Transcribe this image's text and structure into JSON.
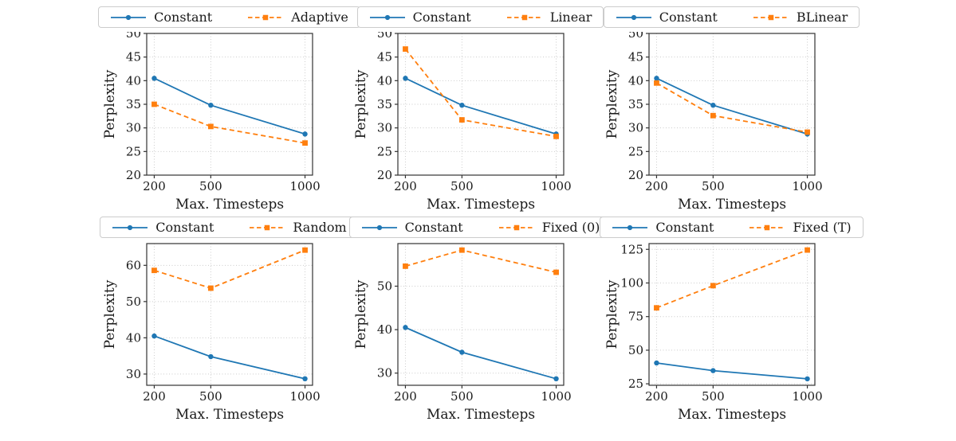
{
  "figure": {
    "xlabel": "Max. Timesteps",
    "ylabel": "Perplexity",
    "background_color": "#ffffff",
    "grid_color": "#cccccc",
    "axis_border_color": "#333333",
    "text_color": "#1a1a1a",
    "constant_color": "#1f77b4",
    "comparison_color": "#ff7f0e"
  },
  "chart_data": [
    {
      "type": "line",
      "x": [
        200,
        500,
        1000
      ],
      "xticks": [
        200,
        500,
        1000
      ],
      "xlim": [
        160,
        1040
      ],
      "ylim": [
        20,
        50
      ],
      "yticks": [
        20,
        25,
        30,
        35,
        40,
        45,
        50
      ],
      "xlabel": "Max. Timesteps",
      "ylabel": "Perplexity",
      "grid": true,
      "legend_position": "top",
      "series": [
        {
          "name": "Constant",
          "values": [
            40.5,
            34.8,
            28.7
          ],
          "color": "#1f77b4",
          "line_style": "solid",
          "marker": "circle"
        },
        {
          "name": "Adaptive",
          "values": [
            35.0,
            30.3,
            26.8
          ],
          "color": "#ff7f0e",
          "line_style": "dashed",
          "marker": "square"
        }
      ]
    },
    {
      "type": "line",
      "x": [
        200,
        500,
        1000
      ],
      "xticks": [
        200,
        500,
        1000
      ],
      "xlim": [
        160,
        1040
      ],
      "ylim": [
        20,
        50
      ],
      "yticks": [
        20,
        25,
        30,
        35,
        40,
        45,
        50
      ],
      "xlabel": "Max. Timesteps",
      "ylabel": "Perplexity",
      "grid": true,
      "legend_position": "top",
      "series": [
        {
          "name": "Constant",
          "values": [
            40.5,
            34.8,
            28.7
          ],
          "color": "#1f77b4",
          "line_style": "solid",
          "marker": "circle"
        },
        {
          "name": "Linear",
          "values": [
            46.7,
            31.7,
            28.2
          ],
          "color": "#ff7f0e",
          "line_style": "dashed",
          "marker": "square"
        }
      ]
    },
    {
      "type": "line",
      "x": [
        200,
        500,
        1000
      ],
      "xticks": [
        200,
        500,
        1000
      ],
      "xlim": [
        160,
        1040
      ],
      "ylim": [
        20,
        50
      ],
      "yticks": [
        20,
        25,
        30,
        35,
        40,
        45,
        50
      ],
      "xlabel": "Max. Timesteps",
      "ylabel": "Perplexity",
      "grid": true,
      "legend_position": "top",
      "series": [
        {
          "name": "Constant",
          "values": [
            40.5,
            34.8,
            28.7
          ],
          "color": "#1f77b4",
          "line_style": "solid",
          "marker": "circle"
        },
        {
          "name": "BLinear",
          "values": [
            39.5,
            32.6,
            29.1
          ],
          "color": "#ff7f0e",
          "line_style": "dashed",
          "marker": "square"
        }
      ]
    },
    {
      "type": "line",
      "x": [
        200,
        500,
        1000
      ],
      "xticks": [
        200,
        500,
        1000
      ],
      "xlim": [
        160,
        1040
      ],
      "ylim": [
        26.9,
        66.0
      ],
      "yticks": [
        30,
        40,
        50,
        60
      ],
      "xlabel": "Max. Timesteps",
      "ylabel": "Perplexity",
      "grid": true,
      "legend_position": "top",
      "series": [
        {
          "name": "Constant",
          "values": [
            40.5,
            34.8,
            28.7
          ],
          "color": "#1f77b4",
          "line_style": "solid",
          "marker": "circle"
        },
        {
          "name": "Random",
          "values": [
            58.6,
            53.7,
            64.2
          ],
          "color": "#ff7f0e",
          "line_style": "dashed",
          "marker": "square"
        }
      ]
    },
    {
      "type": "line",
      "x": [
        200,
        500,
        1000
      ],
      "xticks": [
        200,
        500,
        1000
      ],
      "xlim": [
        160,
        1040
      ],
      "ylim": [
        27.2,
        59.8
      ],
      "yticks": [
        30,
        40,
        50
      ],
      "xlabel": "Max. Timesteps",
      "ylabel": "Perplexity",
      "grid": true,
      "legend_position": "top",
      "series": [
        {
          "name": "Constant",
          "values": [
            40.5,
            34.8,
            28.7
          ],
          "color": "#1f77b4",
          "line_style": "solid",
          "marker": "circle"
        },
        {
          "name": "Fixed (0)",
          "values": [
            54.6,
            58.3,
            53.2
          ],
          "color": "#ff7f0e",
          "line_style": "dashed",
          "marker": "square"
        }
      ]
    },
    {
      "type": "line",
      "x": [
        200,
        500,
        1000
      ],
      "xticks": [
        200,
        500,
        1000
      ],
      "xlim": [
        160,
        1040
      ],
      "ylim": [
        23.9,
        129.3
      ],
      "yticks": [
        25,
        50,
        75,
        100,
        125
      ],
      "xlabel": "Max. Timesteps",
      "ylabel": "Perplexity",
      "grid": true,
      "legend_position": "top",
      "series": [
        {
          "name": "Constant",
          "values": [
            40.5,
            34.8,
            28.7
          ],
          "color": "#1f77b4",
          "line_style": "solid",
          "marker": "circle"
        },
        {
          "name": "Fixed (T)",
          "values": [
            81.5,
            98.0,
            124.5
          ],
          "color": "#ff7f0e",
          "line_style": "dashed",
          "marker": "square"
        }
      ]
    }
  ]
}
